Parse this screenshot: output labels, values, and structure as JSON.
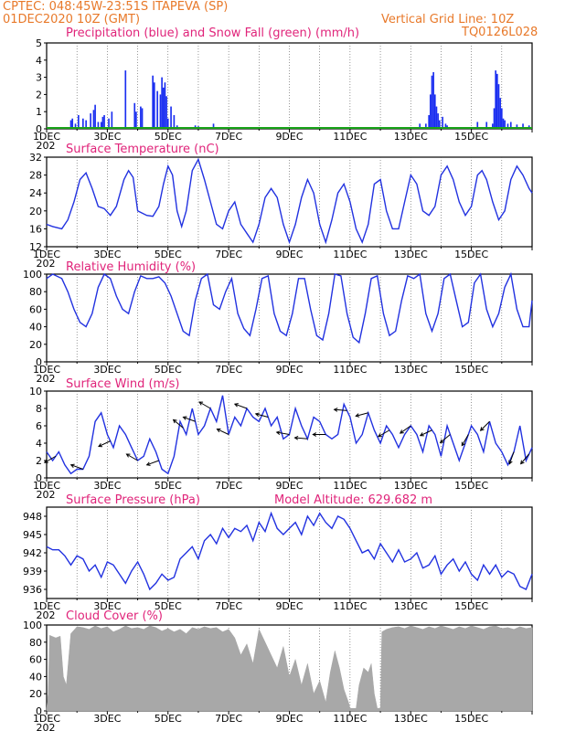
{
  "header": {
    "line1": "CPTEC:   048:45W-23:51S  ITAPEVA (SP)",
    "line2": "01DEC2020 10Z (GMT)",
    "grid_note": "Vertical Grid Line: 10Z",
    "model_id": "TQ0126L028"
  },
  "x_labels": [
    "1DEC",
    "3DEC",
    "5DEC",
    "7DEC",
    "9DEC",
    "11DEC",
    "13DEC",
    "15DEC"
  ],
  "year_stub": "202",
  "colors": {
    "header": "#e8792a",
    "title": "#e0247a",
    "precip": "#1b2ff0",
    "snow": "#19a319",
    "line": "#2232e0",
    "cloud": "#a8a8a8",
    "arrow": "#000000"
  },
  "chart_data": [
    {
      "type": "bar",
      "title": "Precipitation (blue) and Snow Fall (green) (mm/h)",
      "ylim": [
        0,
        5
      ],
      "yticks": [
        0,
        1,
        2,
        3,
        4,
        5
      ],
      "series": [
        {
          "name": "Precipitation",
          "x": [
            0.8,
            0.85,
            0.95,
            1.05,
            1.2,
            1.3,
            1.45,
            1.55,
            1.6,
            1.7,
            1.8,
            1.85,
            1.9,
            2.05,
            2.15,
            2.6,
            2.9,
            2.95,
            3.1,
            3.15,
            3.5,
            3.55,
            3.65,
            3.75,
            3.8,
            3.85,
            3.9,
            3.95,
            4.0,
            4.1,
            4.2,
            4.3,
            4.9,
            5.0,
            5.5,
            12.3,
            12.5,
            12.6,
            12.65,
            12.7,
            12.75,
            12.8,
            12.85,
            12.9,
            12.95,
            13.05,
            13.15,
            13.2,
            14.2,
            14.5,
            14.7,
            14.75,
            14.8,
            14.85,
            14.9,
            14.95,
            15.0,
            15.05,
            15.1,
            15.2,
            15.3,
            15.5,
            15.7,
            15.9
          ],
          "values": [
            0.5,
            0.6,
            0.3,
            0.8,
            0.6,
            0.5,
            0.9,
            1.1,
            1.4,
            0.4,
            0.4,
            0.7,
            0.8,
            0.6,
            1.0,
            3.4,
            1.5,
            1.0,
            1.3,
            1.2,
            3.1,
            2.7,
            2.2,
            2.0,
            3.0,
            2.4,
            2.7,
            1.9,
            0.6,
            1.3,
            0.8,
            0.2,
            0.2,
            0.15,
            0.3,
            0.3,
            0.3,
            0.8,
            2.0,
            3.1,
            3.3,
            2.0,
            1.3,
            0.9,
            0.5,
            0.7,
            0.3,
            0.2,
            0.4,
            0.4,
            0.3,
            1.2,
            3.4,
            3.2,
            2.6,
            1.8,
            1.2,
            0.6,
            0.5,
            0.3,
            0.4,
            0.25,
            0.3,
            0.2
          ]
        },
        {
          "name": "Snow Fall",
          "x": [
            0,
            16
          ],
          "values": [
            0,
            0
          ]
        }
      ]
    },
    {
      "type": "line",
      "title": "Surface Temperature (nC)",
      "ylim": [
        12,
        32
      ],
      "yticks": [
        12,
        16,
        20,
        24,
        28,
        32
      ],
      "x": [
        0,
        0.2,
        0.5,
        0.7,
        0.9,
        1.1,
        1.3,
        1.5,
        1.7,
        1.9,
        2.1,
        2.3,
        2.55,
        2.7,
        2.85,
        3.0,
        3.3,
        3.5,
        3.7,
        3.85,
        4.0,
        4.15,
        4.3,
        4.45,
        4.6,
        4.8,
        5.0,
        5.2,
        5.4,
        5.6,
        5.8,
        6.0,
        6.2,
        6.4,
        6.6,
        6.8,
        7.0,
        7.2,
        7.4,
        7.6,
        7.8,
        8.0,
        8.2,
        8.4,
        8.6,
        8.8,
        9.0,
        9.2,
        9.4,
        9.6,
        9.8,
        10.0,
        10.2,
        10.4,
        10.6,
        10.8,
        11.0,
        11.2,
        11.4,
        11.6,
        11.8,
        12.0,
        12.2,
        12.4,
        12.6,
        12.8,
        13.0,
        13.2,
        13.4,
        13.6,
        13.8,
        14.0,
        14.2,
        14.35,
        14.5,
        14.7,
        14.9,
        15.1,
        15.3,
        15.5,
        15.7,
        15.9,
        16.0
      ],
      "values": [
        17,
        16.5,
        16,
        18,
        22,
        27,
        28.5,
        25,
        21,
        20.5,
        19,
        21,
        27,
        29,
        27.5,
        20,
        19,
        18.8,
        21,
        26,
        30,
        28,
        20,
        16.5,
        20,
        29,
        31.5,
        27,
        22,
        17,
        16,
        20,
        22,
        17,
        15,
        13,
        17,
        23,
        25,
        23,
        17,
        13,
        17,
        23,
        27,
        24,
        17,
        13,
        18,
        24,
        26,
        22,
        16,
        13,
        17,
        26,
        27,
        20,
        16,
        16,
        22,
        28,
        26,
        20,
        19,
        21,
        28,
        30,
        27,
        22,
        19,
        21,
        28,
        29,
        27,
        22,
        18,
        20,
        27,
        30,
        28,
        25,
        24
      ]
    },
    {
      "type": "line",
      "title": "Relative Humidity (%)",
      "ylim": [
        0,
        100
      ],
      "yticks": [
        0,
        20,
        40,
        60,
        80,
        100
      ],
      "x": [
        0,
        0.2,
        0.5,
        0.7,
        0.9,
        1.1,
        1.3,
        1.5,
        1.7,
        1.9,
        2.1,
        2.3,
        2.5,
        2.7,
        2.9,
        3.1,
        3.3,
        3.5,
        3.7,
        3.9,
        4.1,
        4.3,
        4.5,
        4.7,
        4.9,
        5.1,
        5.3,
        5.5,
        5.7,
        5.9,
        6.1,
        6.3,
        6.5,
        6.7,
        6.9,
        7.1,
        7.3,
        7.5,
        7.7,
        7.9,
        8.1,
        8.3,
        8.5,
        8.7,
        8.9,
        9.1,
        9.3,
        9.5,
        9.7,
        9.9,
        10.1,
        10.3,
        10.5,
        10.7,
        10.9,
        11.1,
        11.3,
        11.5,
        11.7,
        11.9,
        12.1,
        12.3,
        12.5,
        12.7,
        12.9,
        13.1,
        13.3,
        13.5,
        13.7,
        13.9,
        14.1,
        14.3,
        14.5,
        14.7,
        14.9,
        15.1,
        15.3,
        15.5,
        15.7,
        15.9,
        16.0
      ],
      "values": [
        95,
        100,
        95,
        80,
        60,
        45,
        40,
        55,
        85,
        100,
        95,
        75,
        60,
        55,
        80,
        98,
        95,
        95,
        97,
        90,
        75,
        55,
        35,
        30,
        70,
        95,
        100,
        65,
        60,
        80,
        95,
        55,
        38,
        30,
        60,
        95,
        98,
        55,
        35,
        30,
        55,
        95,
        95,
        60,
        30,
        25,
        55,
        100,
        98,
        55,
        28,
        22,
        55,
        95,
        98,
        55,
        30,
        35,
        70,
        98,
        95,
        100,
        55,
        35,
        55,
        95,
        100,
        70,
        40,
        45,
        90,
        100,
        60,
        40,
        55,
        85,
        100,
        60,
        40,
        40,
        70
      ]
    },
    {
      "type": "line",
      "title": "Surface Wind (m/s)",
      "ylim": [
        0,
        10
      ],
      "yticks": [
        0,
        2,
        4,
        6,
        8,
        10
      ],
      "x": [
        0,
        0.2,
        0.4,
        0.6,
        0.8,
        1.0,
        1.2,
        1.4,
        1.6,
        1.8,
        2.0,
        2.2,
        2.4,
        2.6,
        2.8,
        3.0,
        3.2,
        3.4,
        3.6,
        3.8,
        4.0,
        4.2,
        4.4,
        4.6,
        4.8,
        5.0,
        5.2,
        5.4,
        5.6,
        5.8,
        6.0,
        6.2,
        6.4,
        6.6,
        6.8,
        7.0,
        7.2,
        7.4,
        7.6,
        7.8,
        8.0,
        8.2,
        8.4,
        8.6,
        8.8,
        9.0,
        9.2,
        9.4,
        9.6,
        9.8,
        10.0,
        10.2,
        10.4,
        10.6,
        10.8,
        11.0,
        11.2,
        11.4,
        11.6,
        11.8,
        12.0,
        12.2,
        12.4,
        12.6,
        12.8,
        13.0,
        13.2,
        13.4,
        13.6,
        13.8,
        14.0,
        14.2,
        14.4,
        14.6,
        14.8,
        15.0,
        15.2,
        15.4,
        15.6,
        15.8,
        16.0
      ],
      "values": [
        3,
        2,
        3,
        1.5,
        0.5,
        1,
        1,
        2.5,
        6.5,
        7.5,
        5,
        3.5,
        6,
        5,
        3.5,
        2,
        2.5,
        4.5,
        3,
        1,
        0.5,
        2.5,
        6.5,
        5,
        8,
        5,
        6,
        8,
        6.5,
        9.5,
        5,
        7,
        6,
        8,
        7,
        6.5,
        8,
        6,
        7,
        4.5,
        5,
        8,
        6,
        4.5,
        7,
        6.5,
        5,
        4.5,
        5,
        8.5,
        7,
        4,
        5,
        7.5,
        5.5,
        4,
        6,
        5,
        3.5,
        5,
        6,
        5,
        3,
        6,
        5,
        2.5,
        6,
        4,
        2,
        4,
        6,
        5,
        3,
        6.5,
        4,
        3,
        1.5,
        3,
        6,
        2,
        3.5
      ],
      "annotations": "wind direction arrows along the series line"
    },
    {
      "type": "line",
      "title": "Surface Pressure (hPa)",
      "subtitle": "Model Altitude: 629.682 m",
      "ylim": [
        934.5,
        949.5
      ],
      "yticks": [
        936,
        939,
        942,
        945,
        948
      ],
      "x": [
        0,
        0.2,
        0.4,
        0.6,
        0.8,
        1.0,
        1.2,
        1.4,
        1.6,
        1.8,
        2.0,
        2.2,
        2.4,
        2.6,
        2.8,
        3.0,
        3.2,
        3.4,
        3.6,
        3.8,
        4.0,
        4.2,
        4.4,
        4.6,
        4.8,
        5.0,
        5.2,
        5.4,
        5.6,
        5.8,
        6.0,
        6.2,
        6.4,
        6.6,
        6.8,
        7.0,
        7.2,
        7.4,
        7.6,
        7.8,
        8.0,
        8.2,
        8.4,
        8.6,
        8.8,
        9.0,
        9.2,
        9.4,
        9.6,
        9.8,
        10.0,
        10.2,
        10.4,
        10.6,
        10.8,
        11.0,
        11.2,
        11.4,
        11.6,
        11.8,
        12.0,
        12.2,
        12.4,
        12.6,
        12.8,
        13.0,
        13.2,
        13.4,
        13.6,
        13.8,
        14.0,
        14.2,
        14.4,
        14.6,
        14.8,
        15.0,
        15.2,
        15.4,
        15.6,
        15.8,
        16.0
      ],
      "values": [
        943,
        942.5,
        942.5,
        941.5,
        940,
        941.5,
        941,
        939,
        940,
        938,
        940.5,
        940,
        938.5,
        937,
        939,
        940.5,
        938.5,
        936,
        937,
        938.5,
        937.5,
        938,
        941,
        942,
        943,
        941,
        944,
        945,
        943.5,
        946,
        944.5,
        946,
        945.5,
        946.5,
        944,
        947,
        945.5,
        948.5,
        946,
        945,
        946,
        947,
        945,
        948,
        946.5,
        948.5,
        947,
        946,
        948,
        947.5,
        946,
        944,
        942,
        942.5,
        941,
        943.5,
        942,
        940.5,
        942.5,
        940.5,
        941,
        942,
        939.5,
        940,
        941.5,
        938.5,
        940,
        941,
        939,
        940.5,
        938.5,
        937.5,
        940,
        938.5,
        940,
        938,
        939,
        938.5,
        936.5,
        936,
        938.5
      ]
    },
    {
      "type": "area",
      "title": "Cloud Cover (%)",
      "ylim": [
        0,
        100
      ],
      "yticks": [
        0,
        20,
        40,
        60,
        80,
        100
      ],
      "x": [
        0,
        0.05,
        0.1,
        0.3,
        0.45,
        0.55,
        0.65,
        0.8,
        1.0,
        1.2,
        1.4,
        1.6,
        1.8,
        2.0,
        2.2,
        2.4,
        2.6,
        2.8,
        3.0,
        3.2,
        3.4,
        3.6,
        3.8,
        4.0,
        4.2,
        4.4,
        4.6,
        4.8,
        5.0,
        5.2,
        5.4,
        5.6,
        5.8,
        6.0,
        6.2,
        6.4,
        6.6,
        6.8,
        7.0,
        7.2,
        7.4,
        7.6,
        7.8,
        8.0,
        8.2,
        8.4,
        8.6,
        8.8,
        9.0,
        9.2,
        9.35,
        9.5,
        9.65,
        9.8,
        9.95,
        10.0,
        10.2,
        10.3,
        10.45,
        10.6,
        10.7,
        10.8,
        10.9,
        11.0,
        11.05,
        11.2,
        11.4,
        11.6,
        11.8,
        12.0,
        12.2,
        12.4,
        12.6,
        12.8,
        13.0,
        13.2,
        13.4,
        13.6,
        13.8,
        14.0,
        14.2,
        14.4,
        14.6,
        14.8,
        15.0,
        15.2,
        15.4,
        15.6,
        15.8,
        16.0
      ],
      "values": [
        3,
        20,
        88,
        85,
        87,
        40,
        30,
        90,
        98,
        97,
        95,
        99,
        96,
        98,
        92,
        95,
        99,
        96,
        97,
        95,
        99,
        97,
        93,
        96,
        92,
        95,
        90,
        97,
        95,
        98,
        96,
        97,
        92,
        95,
        85,
        65,
        78,
        55,
        95,
        80,
        65,
        50,
        75,
        40,
        60,
        30,
        55,
        20,
        35,
        10,
        45,
        70,
        50,
        25,
        10,
        3,
        3,
        30,
        50,
        45,
        55,
        20,
        3,
        3,
        92,
        95,
        97,
        98,
        96,
        99,
        97,
        95,
        98,
        96,
        99,
        97,
        95,
        98,
        96,
        99,
        97,
        95,
        98,
        99,
        96,
        97,
        95,
        98,
        96,
        97
      ]
    }
  ]
}
